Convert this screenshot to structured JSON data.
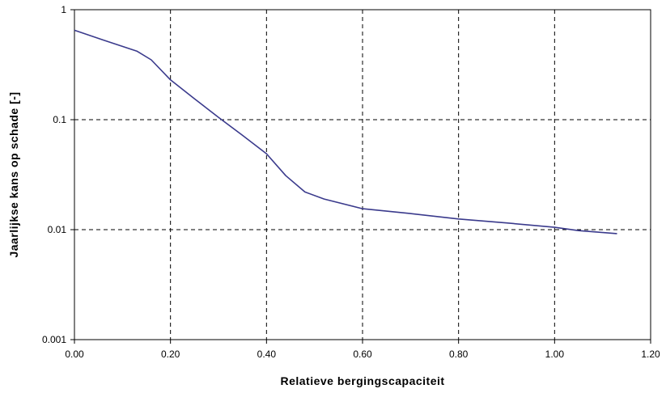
{
  "chart_data": {
    "type": "line",
    "title": "",
    "xlabel": "Relatieve bergingscapaciteit",
    "ylabel": "Jaarlijkse kans op schade [-]",
    "xlim": [
      0,
      1.2
    ],
    "ylim": [
      0.001,
      1
    ],
    "yscale": "log",
    "grid": true,
    "legend": "none",
    "x_ticks": [
      "0.00",
      "0.20",
      "0.40",
      "0.60",
      "0.80",
      "1.00",
      "1.20"
    ],
    "y_ticks": [
      "1",
      "0.1",
      "0.01",
      "0.001"
    ],
    "series": [
      {
        "color": "#3a3a8c",
        "x": [
          0.0,
          0.06,
          0.13,
          0.16,
          0.2,
          0.25,
          0.3,
          0.35,
          0.4,
          0.44,
          0.48,
          0.52,
          0.6,
          0.7,
          0.8,
          0.9,
          1.0,
          1.05,
          1.13
        ],
        "y": [
          0.65,
          0.53,
          0.42,
          0.35,
          0.23,
          0.155,
          0.105,
          0.072,
          0.049,
          0.031,
          0.022,
          0.019,
          0.0155,
          0.014,
          0.0125,
          0.0115,
          0.0105,
          0.0098,
          0.0092
        ]
      }
    ]
  }
}
